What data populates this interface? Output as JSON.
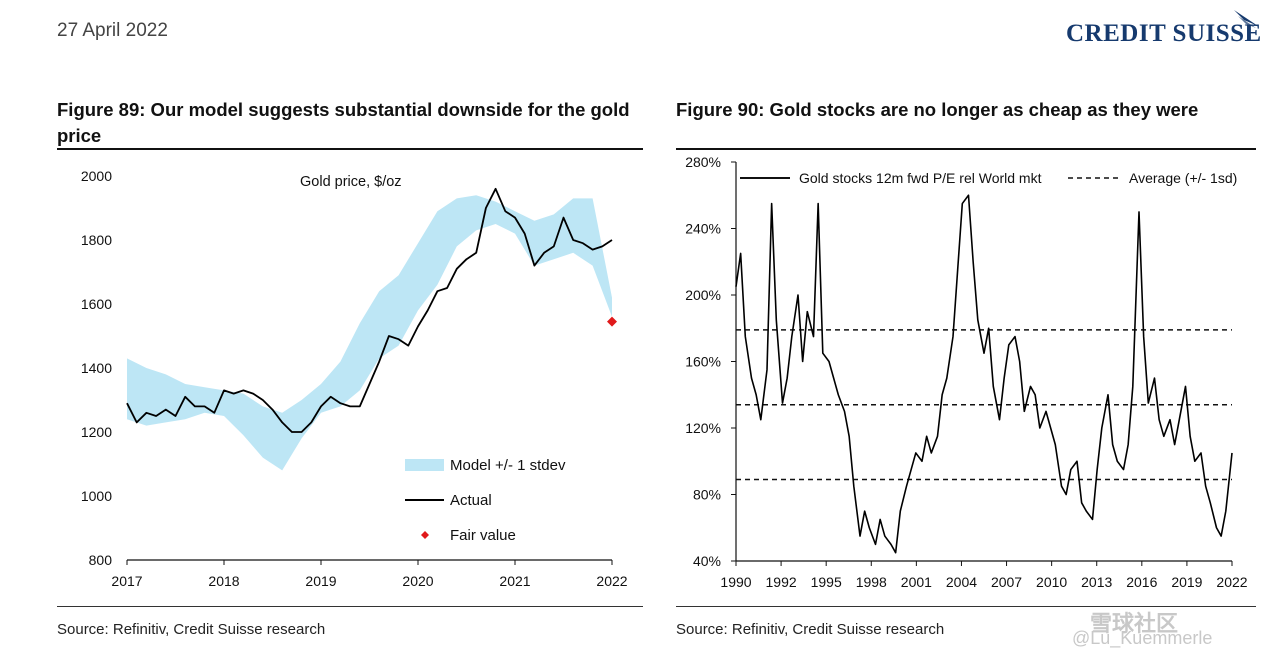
{
  "header": {
    "date": "27 April 2022",
    "brand": "CREDIT SUISSE"
  },
  "figures": [
    {
      "title": "Figure 89: Our model suggests substantial downside for the gold price",
      "source": "Source: Refinitiv, Credit Suisse research"
    },
    {
      "title": "Figure 90: Gold stocks are no longer as cheap as they were",
      "source": "Source: Refinitiv, Credit Suisse research"
    }
  ],
  "watermark": {
    "line1": "雪球社区",
    "line2": "@Lu_Kuemmerle"
  },
  "colors": {
    "band": "#bde6f5",
    "line": "#000000",
    "fair_value": "#e0191b",
    "brand": "#163a6e"
  },
  "chart_data": [
    {
      "type": "line",
      "annotation": "Gold price, $/oz",
      "xlim": [
        2017,
        2022
      ],
      "ylim": [
        800,
        2000
      ],
      "x_ticks": [
        "2017",
        "2018",
        "2019",
        "2020",
        "2021",
        "2022"
      ],
      "y_ticks": [
        "800",
        "1000",
        "1200",
        "1400",
        "1600",
        "1800",
        "2000"
      ],
      "legend": [
        "Model +/- 1 stdev",
        "Actual",
        "Fair value"
      ],
      "legend_position": "bottom-right",
      "series": [
        {
          "name": "Actual",
          "x": [
            2017.0,
            2017.1,
            2017.2,
            2017.3,
            2017.4,
            2017.5,
            2017.6,
            2017.7,
            2017.8,
            2017.9,
            2018.0,
            2018.1,
            2018.2,
            2018.3,
            2018.4,
            2018.5,
            2018.6,
            2018.7,
            2018.8,
            2018.9,
            2019.0,
            2019.1,
            2019.2,
            2019.3,
            2019.4,
            2019.5,
            2019.6,
            2019.7,
            2019.8,
            2019.9,
            2020.0,
            2020.1,
            2020.2,
            2020.3,
            2020.4,
            2020.5,
            2020.6,
            2020.7,
            2020.8,
            2020.9,
            2021.0,
            2021.1,
            2021.2,
            2021.3,
            2021.4,
            2021.5,
            2021.6,
            2021.7,
            2021.8,
            2021.9,
            2022.0
          ],
          "y": [
            1290,
            1230,
            1260,
            1250,
            1270,
            1250,
            1310,
            1280,
            1280,
            1260,
            1330,
            1320,
            1330,
            1320,
            1300,
            1270,
            1230,
            1200,
            1200,
            1230,
            1280,
            1310,
            1290,
            1280,
            1280,
            1350,
            1420,
            1500,
            1490,
            1470,
            1530,
            1580,
            1640,
            1650,
            1710,
            1740,
            1760,
            1900,
            1960,
            1890,
            1870,
            1820,
            1720,
            1760,
            1780,
            1870,
            1800,
            1790,
            1770,
            1780,
            1800
          ]
        },
        {
          "name": "Model +/- 1 stdev",
          "x": [
            2017.0,
            2017.2,
            2017.4,
            2017.6,
            2017.8,
            2018.0,
            2018.2,
            2018.4,
            2018.6,
            2018.8,
            2019.0,
            2019.2,
            2019.4,
            2019.6,
            2019.8,
            2020.0,
            2020.2,
            2020.4,
            2020.6,
            2020.8,
            2021.0,
            2021.2,
            2021.4,
            2021.6,
            2021.8,
            2022.0
          ],
          "lower": [
            1240,
            1220,
            1230,
            1240,
            1260,
            1250,
            1190,
            1120,
            1080,
            1180,
            1260,
            1280,
            1330,
            1430,
            1470,
            1580,
            1660,
            1780,
            1830,
            1850,
            1820,
            1720,
            1740,
            1760,
            1720,
            1560
          ],
          "upper": [
            1430,
            1400,
            1380,
            1350,
            1340,
            1330,
            1320,
            1280,
            1260,
            1300,
            1350,
            1420,
            1540,
            1640,
            1690,
            1790,
            1890,
            1930,
            1940,
            1920,
            1890,
            1860,
            1880,
            1930,
            1930,
            1620
          ]
        }
      ],
      "fair_value": {
        "x": 2022.0,
        "y": 1545
      }
    },
    {
      "type": "line",
      "xlim": [
        1990,
        2022
      ],
      "ylim": [
        40,
        280
      ],
      "x_ticks": [
        "1990",
        "1992",
        "1995",
        "1998",
        "2001",
        "2004",
        "2007",
        "2010",
        "2013",
        "2016",
        "2019",
        "2022"
      ],
      "y_ticks": [
        "40%",
        "80%",
        "120%",
        "160%",
        "200%",
        "240%",
        "280%"
      ],
      "legend": [
        "Gold stocks 12m fwd P/E rel World mkt",
        "Average (+/- 1sd)"
      ],
      "legend_position": "top",
      "series": [
        {
          "name": "Gold stocks 12m fwd P/E rel World mkt",
          "x": [
            1990.0,
            1990.3,
            1990.6,
            1991.0,
            1991.3,
            1991.6,
            1992.0,
            1992.3,
            1992.6,
            1993.0,
            1993.3,
            1993.6,
            1994.0,
            1994.3,
            1994.6,
            1995.0,
            1995.3,
            1995.6,
            1996.0,
            1996.3,
            1996.6,
            1997.0,
            1997.3,
            1997.6,
            1998.0,
            1998.3,
            1998.6,
            1999.0,
            1999.3,
            1999.6,
            2000.0,
            2000.3,
            2000.6,
            2001.0,
            2001.3,
            2001.6,
            2002.0,
            2002.3,
            2002.6,
            2003.0,
            2003.3,
            2003.6,
            2004.0,
            2004.3,
            2004.6,
            2005.0,
            2005.3,
            2005.6,
            2006.0,
            2006.3,
            2006.6,
            2007.0,
            2007.3,
            2007.6,
            2008.0,
            2008.3,
            2008.6,
            2009.0,
            2009.3,
            2009.6,
            2010.0,
            2010.3,
            2010.6,
            2011.0,
            2011.3,
            2011.6,
            2012.0,
            2012.3,
            2012.6,
            2013.0,
            2013.3,
            2013.6,
            2014.0,
            2014.3,
            2014.6,
            2015.0,
            2015.3,
            2015.6,
            2016.0,
            2016.3,
            2016.6,
            2017.0,
            2017.3,
            2017.6,
            2018.0,
            2018.3,
            2018.6,
            2019.0,
            2019.3,
            2019.6,
            2020.0,
            2020.3,
            2020.6,
            2021.0,
            2021.3,
            2021.6,
            2022.0
          ],
          "y": [
            205,
            225,
            175,
            150,
            140,
            125,
            155,
            255,
            185,
            135,
            150,
            175,
            200,
            160,
            190,
            175,
            255,
            165,
            160,
            150,
            140,
            130,
            115,
            85,
            55,
            70,
            60,
            50,
            65,
            55,
            50,
            45,
            70,
            85,
            95,
            105,
            100,
            115,
            105,
            115,
            140,
            150,
            175,
            215,
            255,
            260,
            220,
            185,
            165,
            180,
            145,
            125,
            150,
            170,
            175,
            160,
            130,
            145,
            140,
            120,
            130,
            120,
            110,
            85,
            80,
            95,
            100,
            75,
            70,
            65,
            95,
            120,
            140,
            110,
            100,
            95,
            110,
            145,
            250,
            175,
            135,
            150,
            125,
            115,
            125,
            110,
            125,
            145,
            115,
            100,
            105,
            85,
            75,
            60,
            55,
            70,
            105
          ]
        }
      ],
      "average_lines": [
        134,
        179,
        89
      ]
    }
  ]
}
